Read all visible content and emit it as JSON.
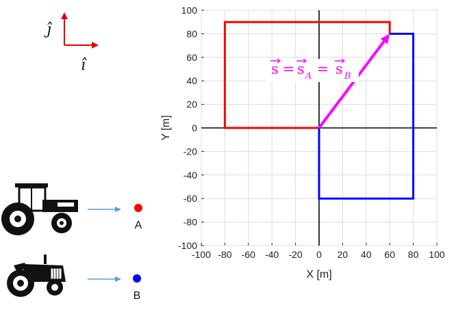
{
  "chart_data": {
    "type": "line",
    "title": "",
    "xlabel": "X  [m]",
    "ylabel": "Y  [m]",
    "xlim": [
      -100,
      100
    ],
    "ylim": [
      -100,
      100
    ],
    "xticks": [
      -100,
      -80,
      -60,
      -40,
      -20,
      0,
      20,
      40,
      60,
      80,
      100
    ],
    "yticks": [
      -100,
      -80,
      -60,
      -40,
      -20,
      0,
      20,
      40,
      60,
      80,
      100
    ],
    "grid": true,
    "axis_lines_at_origin": true,
    "series": [
      {
        "color": "#ff0000",
        "x": [
          0,
          -80,
          -80,
          60,
          60
        ],
        "y": [
          0,
          0,
          90,
          90,
          80
        ]
      },
      {
        "color": "#0000ff",
        "x": [
          0,
          0,
          80,
          80,
          60
        ],
        "y": [
          0,
          -60,
          -60,
          80,
          80
        ]
      }
    ],
    "vector": {
      "color": "#ff00ff",
      "from": [
        0,
        0
      ],
      "to": [
        60,
        80
      ]
    },
    "annotation": {
      "base": "s",
      "eq": " = ",
      "sub_a": "A",
      "sub_b": "B"
    }
  },
  "unit_vectors": {
    "i_hat": "î",
    "j_hat": "ĵ",
    "color": "#e00000"
  },
  "legend": [
    {
      "label": "A",
      "color": "#ff0000",
      "icon": "modern-tractor-icon"
    },
    {
      "label": "B",
      "color": "#0000ff",
      "icon": "vintage-tractor-icon"
    }
  ],
  "arrow_color": "#5b9bd5"
}
